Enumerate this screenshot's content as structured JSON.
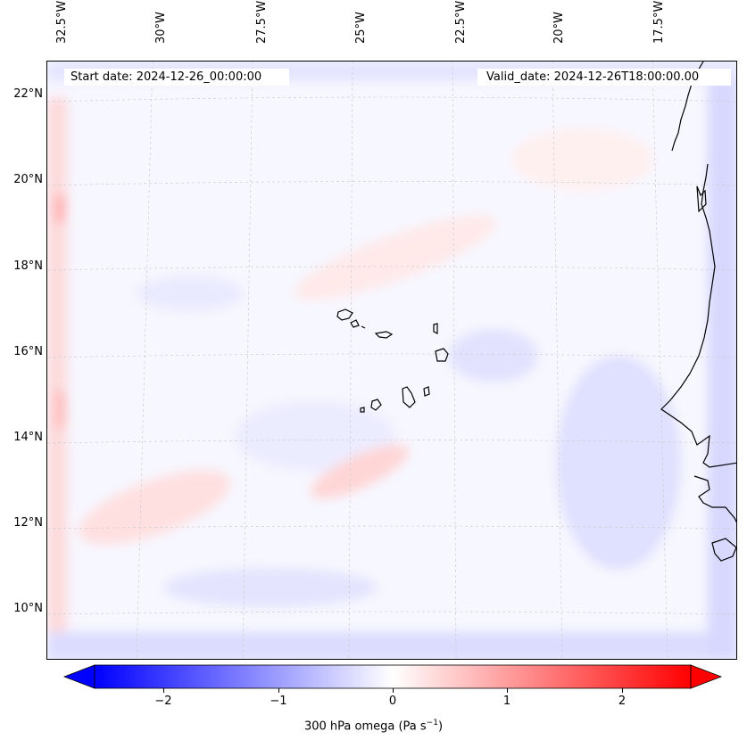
{
  "map": {
    "start_date": "Start date: 2024-12-26_00:00:00",
    "valid_date": "Valid_date: 2024-12-26T18:00:00.00",
    "lon_labels": [
      "32.5°W",
      "30°W",
      "27.5°W",
      "25°W",
      "22.5°W",
      "20°W",
      "17.5°W"
    ],
    "lat_labels": [
      "22°N",
      "20°N",
      "18°N",
      "16°N",
      "14°N",
      "12°N",
      "10°N"
    ]
  },
  "colorbar": {
    "label": "300 hPa omega (Pa s",
    "label_sup": "−1",
    "label_close": ")",
    "ticks": [
      "−2",
      "−1",
      "0",
      "1",
      "2"
    ],
    "tick_values": [
      -2,
      -1,
      0,
      1,
      2
    ],
    "range": [
      -2.6,
      2.6
    ],
    "colors": {
      "negative": "#0000ff",
      "zero": "#ffffff",
      "positive": "#ff0000"
    }
  }
}
